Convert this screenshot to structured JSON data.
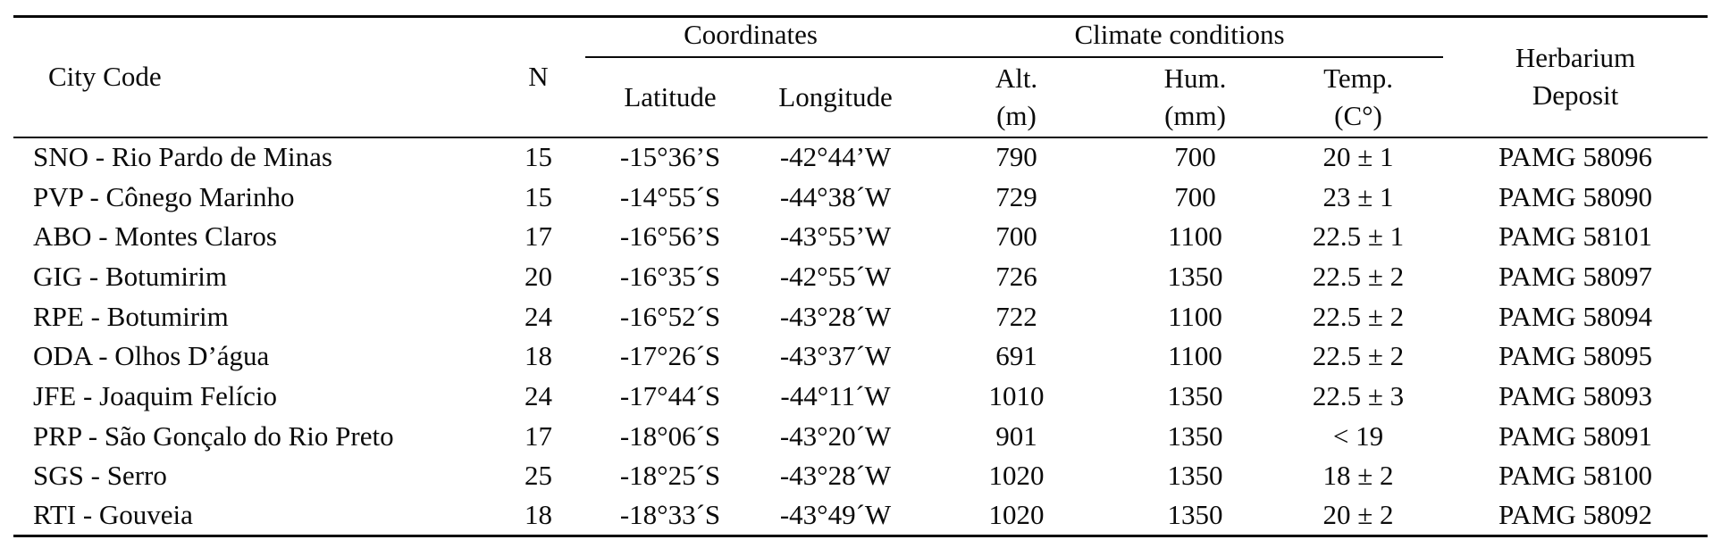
{
  "colors": {
    "background": "#ffffff",
    "text": "#0a0a0a",
    "rule": "#0a0a0a"
  },
  "table": {
    "header": {
      "city_code": "City Code",
      "n": "N",
      "coordinates_group": "Coordinates",
      "climate_group": "Climate conditions",
      "latitude": "Latitude",
      "longitude": "Longitude",
      "alt_line1": "Alt.",
      "alt_line2": "(m)",
      "hum_line1": "Hum.",
      "hum_line2": "(mm)",
      "temp_line1": "Temp.",
      "temp_line2": "(C°)",
      "herbarium_line1": "Herbarium",
      "herbarium_line2": "Deposit"
    },
    "rows": [
      {
        "city": "SNO - Rio Pardo de Minas",
        "n": "15",
        "latitude": "-15°36’S",
        "longitude": "-42°44’W",
        "alt": "790",
        "hum": "700",
        "temp": "20 ± 1",
        "herbarium": "PAMG 58096"
      },
      {
        "city": "PVP - Cônego Marinho",
        "n": "15",
        "latitude": "-14°55´S",
        "longitude": "-44°38´W",
        "alt": "729",
        "hum": "700",
        "temp": "23 ± 1",
        "herbarium": "PAMG 58090"
      },
      {
        "city": "ABO - Montes Claros",
        "n": "17",
        "latitude": "-16°56’S",
        "longitude": "-43°55’W",
        "alt": "700",
        "hum": "1100",
        "temp": "22.5 ± 1",
        "herbarium": "PAMG 58101"
      },
      {
        "city": "GIG - Botumirim",
        "n": "20",
        "latitude": "-16°35´S",
        "longitude": "-42°55´W",
        "alt": "726",
        "hum": "1350",
        "temp": "22.5 ± 2",
        "herbarium": "PAMG 58097"
      },
      {
        "city": "RPE - Botumirim",
        "n": "24",
        "latitude": "-16°52´S",
        "longitude": "-43°28´W",
        "alt": "722",
        "hum": "1100",
        "temp": "22.5 ± 2",
        "herbarium": "PAMG 58094"
      },
      {
        "city": "ODA - Olhos D’água",
        "n": "18",
        "latitude": "-17°26´S",
        "longitude": "-43°37´W",
        "alt": "691",
        "hum": "1100",
        "temp": "22.5 ± 2",
        "herbarium": "PAMG 58095"
      },
      {
        "city": "JFE - Joaquim Felício",
        "n": "24",
        "latitude": "-17°44´S",
        "longitude": "-44°11´W",
        "alt": "1010",
        "hum": "1350",
        "temp": "22.5 ± 3",
        "herbarium": "PAMG 58093"
      },
      {
        "city": "PRP - São Gonçalo do Rio Preto",
        "n": "17",
        "latitude": "-18°06´S",
        "longitude": "-43°20´W",
        "alt": "901",
        "hum": "1350",
        "temp": "< 19",
        "herbarium": "PAMG 58091"
      },
      {
        "city": "SGS - Serro",
        "n": "25",
        "latitude": "-18°25´S",
        "longitude": "-43°28´W",
        "alt": "1020",
        "hum": "1350",
        "temp": "18 ± 2",
        "herbarium": "PAMG 58100"
      },
      {
        "city": "RTI - Gouveia",
        "n": "18",
        "latitude": "-18°33´S",
        "longitude": "-43°49´W",
        "alt": "1020",
        "hum": "1350",
        "temp": "20 ± 2",
        "herbarium": "PAMG 58092"
      }
    ]
  }
}
